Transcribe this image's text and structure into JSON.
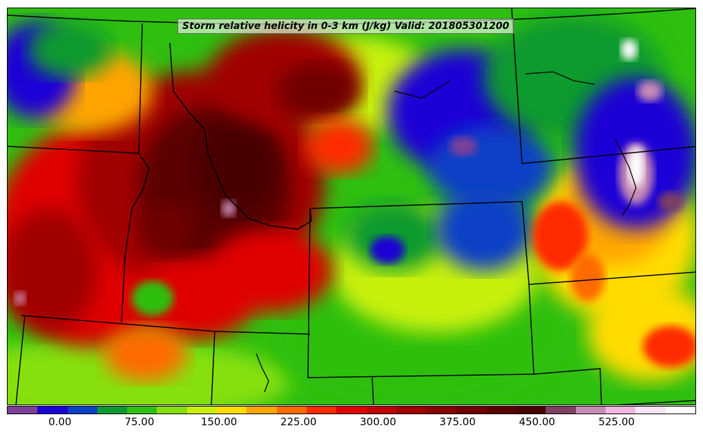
{
  "title": "Storm relative helicity in 0-3 km (J/kg) Valid: 201805301200",
  "colorbar": {
    "colors": [
      "#7e3f98",
      "#1a00d6",
      "#0b3fc6",
      "#0a9a2e",
      "#2fbf10",
      "#86e010",
      "#c8f00a",
      "#ffdc00",
      "#ffa400",
      "#ff6a00",
      "#ff2a00",
      "#e00000",
      "#c00000",
      "#a00000",
      "#880000",
      "#700000",
      "#5a0000",
      "#4a0000",
      "#7d4060",
      "#c78bb4",
      "#f0b8e0",
      "#fce3f6",
      "#ffffff"
    ],
    "tick_labels": [
      "0.00",
      "75.00",
      "150.00",
      "225.00",
      "300.00",
      "375.00",
      "450.00",
      "525.00"
    ],
    "range": [
      -50,
      600
    ],
    "tick_values": [
      0,
      75,
      150,
      225,
      300,
      375,
      450,
      525
    ]
  }
}
